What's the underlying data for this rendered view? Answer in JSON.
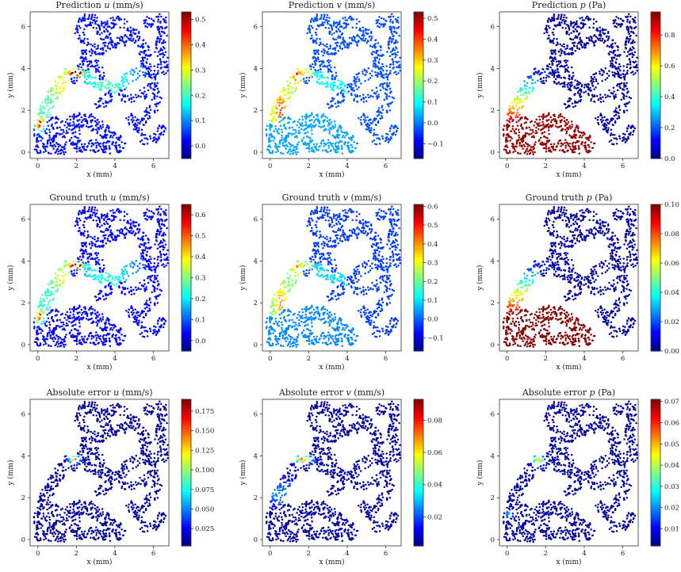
{
  "panels": [
    {
      "title": "Prediction u (mm/s)",
      "title_parts": [
        "Prediction ",
        "u",
        " (mm/s)"
      ],
      "cbar_ticks": [
        "0.0",
        "0.1",
        "0.2",
        "0.3",
        "0.4",
        "0.5"
      ],
      "cbar_range": [
        -0.05,
        0.53
      ],
      "field": "u"
    },
    {
      "title": "Prediction v (mm/s)",
      "title_parts": [
        "Prediction ",
        "v",
        " (mm/s)"
      ],
      "cbar_ticks": [
        "−0.1",
        "0.0",
        "0.1",
        "0.2",
        "0.3",
        "0.4",
        "0.5"
      ],
      "cbar_range": [
        -0.17,
        0.53
      ],
      "field": "v"
    },
    {
      "title": "Prediction p (Pa)",
      "title_parts": [
        "Prediction ",
        "p",
        " (Pa)"
      ],
      "cbar_ticks": [
        "0.0",
        "0.2",
        "0.4",
        "0.6",
        "0.8"
      ],
      "cbar_range": [
        0.0,
        0.95
      ],
      "field": "p"
    },
    {
      "title": "Ground truth u (mm/s)",
      "title_parts": [
        "Ground truth ",
        "u",
        " (mm/s)"
      ],
      "cbar_ticks": [
        "0.0",
        "0.1",
        "0.2",
        "0.3",
        "0.4",
        "0.5",
        "0.6"
      ],
      "cbar_range": [
        -0.05,
        0.65
      ],
      "field": "u"
    },
    {
      "title": "Ground truth v (mm/s)",
      "title_parts": [
        "Ground truth ",
        "v",
        " (mm/s)"
      ],
      "cbar_ticks": [
        "−0.1",
        "0.0",
        "0.1",
        "0.2",
        "0.3",
        "0.4",
        "0.5",
        "0.6"
      ],
      "cbar_range": [
        -0.17,
        0.61
      ],
      "field": "v"
    },
    {
      "title": "Ground truth p (Pa)",
      "title_parts": [
        "Ground truth ",
        "p",
        " (Pa)"
      ],
      "cbar_ticks": [
        "0.00",
        "0.02",
        "0.04",
        "0.06",
        "0.08",
        "0.10"
      ],
      "cbar_range": [
        0.0,
        0.1
      ],
      "field": "p"
    },
    {
      "title": "Absolute error u (mm/s)",
      "title_parts": [
        "Absolute error ",
        "u",
        " (mm/s)"
      ],
      "cbar_ticks": [
        "0.025",
        "0.050",
        "0.075",
        "0.100",
        "0.125",
        "0.150",
        "0.175"
      ],
      "cbar_range": [
        0.003,
        0.19
      ],
      "field": "eu"
    },
    {
      "title": "Absolute error v (mm/s)",
      "title_parts": [
        "Absolute error ",
        "v",
        " (mm/s)"
      ],
      "cbar_ticks": [
        "0.02",
        "0.04",
        "0.06",
        "0.08"
      ],
      "cbar_range": [
        0.002,
        0.093
      ],
      "field": "ev"
    },
    {
      "title": "Absolute error p (Pa)",
      "title_parts": [
        "Absolute error ",
        "p",
        " (Pa)"
      ],
      "cbar_ticks": [
        "0.01",
        "0.02",
        "0.03",
        "0.04",
        "0.05",
        "0.06",
        "0.07"
      ],
      "cbar_range": [
        0.002,
        0.071
      ],
      "field": "ep"
    }
  ],
  "axis": {
    "xlabel": "x (mm)",
    "ylabel": "y (mm)",
    "xticks": [
      "0",
      "2",
      "4",
      "6"
    ],
    "yticks": [
      "0",
      "2",
      "4",
      "6"
    ],
    "xlim": [
      -0.4,
      6.8
    ],
    "ylim": [
      -0.3,
      6.7
    ]
  },
  "colormap": "jet",
  "chart_data": [
    {
      "type": "scatter",
      "title": "Prediction u (mm/s)",
      "xlabel": "x (mm)",
      "ylabel": "y (mm)",
      "colorbar_range": [
        -0.05,
        0.53
      ]
    },
    {
      "type": "scatter",
      "title": "Prediction v (mm/s)",
      "xlabel": "x (mm)",
      "ylabel": "y (mm)",
      "colorbar_range": [
        -0.17,
        0.53
      ]
    },
    {
      "type": "scatter",
      "title": "Prediction p (Pa)",
      "xlabel": "x (mm)",
      "ylabel": "y (mm)",
      "colorbar_range": [
        0.0,
        0.95
      ]
    },
    {
      "type": "scatter",
      "title": "Ground truth u (mm/s)",
      "xlabel": "x (mm)",
      "ylabel": "y (mm)",
      "colorbar_range": [
        -0.05,
        0.65
      ]
    },
    {
      "type": "scatter",
      "title": "Ground truth v (mm/s)",
      "xlabel": "x (mm)",
      "ylabel": "y (mm)",
      "colorbar_range": [
        -0.17,
        0.61
      ]
    },
    {
      "type": "scatter",
      "title": "Ground truth p (Pa)",
      "xlabel": "x (mm)",
      "ylabel": "y (mm)",
      "colorbar_range": [
        0.0,
        0.1
      ]
    },
    {
      "type": "scatter",
      "title": "Absolute error u (mm/s)",
      "xlabel": "x (mm)",
      "ylabel": "y (mm)",
      "colorbar_range": [
        0.003,
        0.19
      ]
    },
    {
      "type": "scatter",
      "title": "Absolute error v (mm/s)",
      "xlabel": "x (mm)",
      "ylabel": "y (mm)",
      "colorbar_range": [
        0.002,
        0.093
      ]
    },
    {
      "type": "scatter",
      "title": "Absolute error p (Pa)",
      "xlabel": "x (mm)",
      "ylabel": "y (mm)",
      "colorbar_range": [
        0.002,
        0.071
      ]
    }
  ]
}
